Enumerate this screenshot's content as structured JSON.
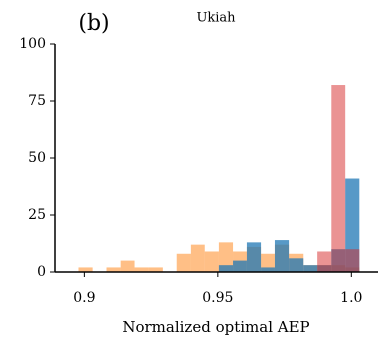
{
  "chart_data": {
    "type": "histogram",
    "title": "Ukiah",
    "panel_label": "(b)",
    "x_label": "Normalized optimal AEP",
    "bins": [
      0.8978,
      0.9031,
      0.9083,
      0.9136,
      0.9188,
      0.9241,
      0.9294,
      0.9346,
      0.9399,
      0.9451,
      0.9504,
      0.9557,
      0.9609,
      0.9662,
      0.9714,
      0.9767,
      0.982,
      0.9872,
      0.9925,
      0.9977,
      1.003
    ],
    "series": [
      {
        "color": "#ff7f0e",
        "values": [
          2,
          0,
          2,
          5,
          2,
          2,
          0,
          8,
          12,
          9,
          13,
          9,
          11,
          8,
          12,
          8,
          3,
          3,
          3,
          2
        ]
      },
      {
        "color": "#1f77b4",
        "values": [
          0,
          0,
          0,
          0,
          0,
          0,
          0,
          0,
          0,
          0,
          3,
          5,
          13,
          2,
          14,
          6,
          3,
          3,
          10,
          41
        ]
      },
      {
        "color": "#d62728",
        "values": [
          0,
          0,
          0,
          0,
          0,
          0,
          0,
          0,
          0,
          0,
          0,
          0,
          0,
          0,
          0,
          0,
          0,
          9,
          82,
          10
        ]
      }
    ],
    "opacity": [
      0.5,
      0.75,
      0.5
    ],
    "xlim": [
      0.889,
      1.01
    ],
    "ylim": [
      0,
      100
    ],
    "xticks": [
      0.9,
      0.95,
      {
        "value": 1.0,
        "label": "1.0"
      }
    ],
    "yticks": [
      0,
      25,
      50,
      75,
      100
    ]
  }
}
